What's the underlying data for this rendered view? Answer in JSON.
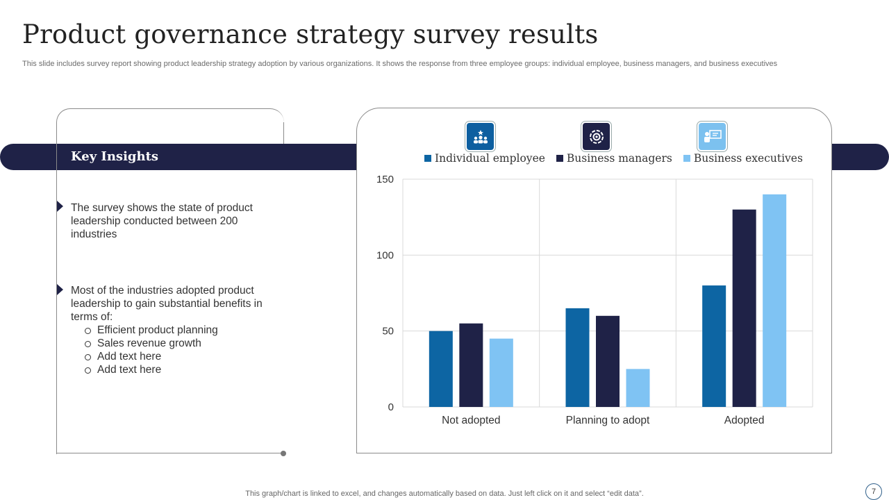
{
  "slide": {
    "title": "Product governance strategy survey results",
    "subtitle": "This slide includes survey report showing product leadership strategy adoption by various organizations. It shows the response from three employee groups: individual employee, business managers, and business executives",
    "footer": "This graph/chart is linked to excel,  and changes automatically based on data. Just left click on it and select “edit data”.",
    "page_number": "7"
  },
  "insights": {
    "title": "Key Insights",
    "bullets": [
      "The survey shows the state of product leadership conducted between 200 industries",
      "Most of the industries adopted product leadership to gain substantial benefits in terms of:"
    ],
    "sub_items": [
      "Efficient product planning",
      "Sales revenue growth",
      "Add text here",
      "Add text here"
    ]
  },
  "icons": [
    {
      "name": "team-leader-icon",
      "bg": "#0d5fa0"
    },
    {
      "name": "gear-team-icon",
      "bg": "#1f2247"
    },
    {
      "name": "presenter-icon",
      "bg": "#7cc1ef"
    }
  ],
  "chart_data": {
    "type": "bar",
    "categories": [
      "Not adopted",
      "Planning to adopt",
      "Adopted"
    ],
    "series": [
      {
        "name": "Individual employee",
        "color": "#0d65a3",
        "values": [
          50,
          65,
          80
        ]
      },
      {
        "name": "Business managers",
        "color": "#1f2247",
        "values": [
          55,
          60,
          130
        ]
      },
      {
        "name": "Business executives",
        "color": "#7fc3f3",
        "values": [
          45,
          25,
          140
        ]
      }
    ],
    "ylim": [
      0,
      150
    ],
    "yticks": [
      0,
      50,
      100,
      150
    ],
    "grid": true,
    "legend": "top"
  }
}
